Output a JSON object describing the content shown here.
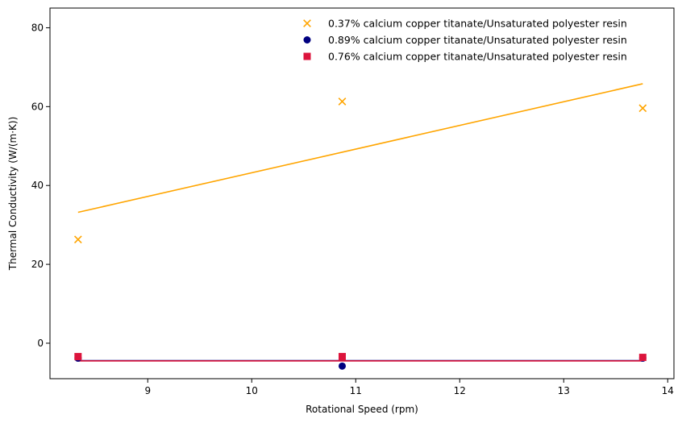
{
  "chart_data": {
    "type": "scatter",
    "title": "",
    "xlabel": "Rotational Speed (rpm)",
    "ylabel": "Thermal Conductivity (W/(m·K))",
    "xlim": [
      8.06,
      14.06
    ],
    "ylim": [
      -9,
      85
    ],
    "xticks": [
      9,
      10,
      11,
      12,
      13,
      14
    ],
    "yticks": [
      0,
      20,
      40,
      60,
      80
    ],
    "grid": false,
    "legend_position": "top-right",
    "series": [
      {
        "name": "0.37% calcium copper titanate/Unsaturated polyester resin",
        "marker": "x",
        "color": "#FFA500",
        "x": [
          8.33,
          10.87,
          13.76
        ],
        "y": [
          26.3,
          61.3,
          59.6
        ],
        "trend": {
          "x": [
            8.33,
            13.76
          ],
          "y": [
            33.2,
            65.8
          ]
        }
      },
      {
        "name": "0.89% calcium copper titanate/Unsaturated polyester resin",
        "marker": "circle",
        "color": "#000080",
        "x": [
          8.33,
          10.87,
          13.76
        ],
        "y": [
          -3.8,
          -5.8,
          -3.8
        ],
        "trend": {
          "x": [
            8.33,
            13.76
          ],
          "y": [
            -4.4,
            -4.4
          ]
        }
      },
      {
        "name": "0.76% calcium copper titanate/Unsaturated polyester resin",
        "marker": "square",
        "color": "#DC143C",
        "x": [
          8.33,
          10.87,
          13.76
        ],
        "y": [
          -3.4,
          -3.4,
          -3.6
        ],
        "trend": {
          "x": [
            8.33,
            13.76
          ],
          "y": [
            -4.5,
            -4.5
          ]
        }
      }
    ]
  }
}
